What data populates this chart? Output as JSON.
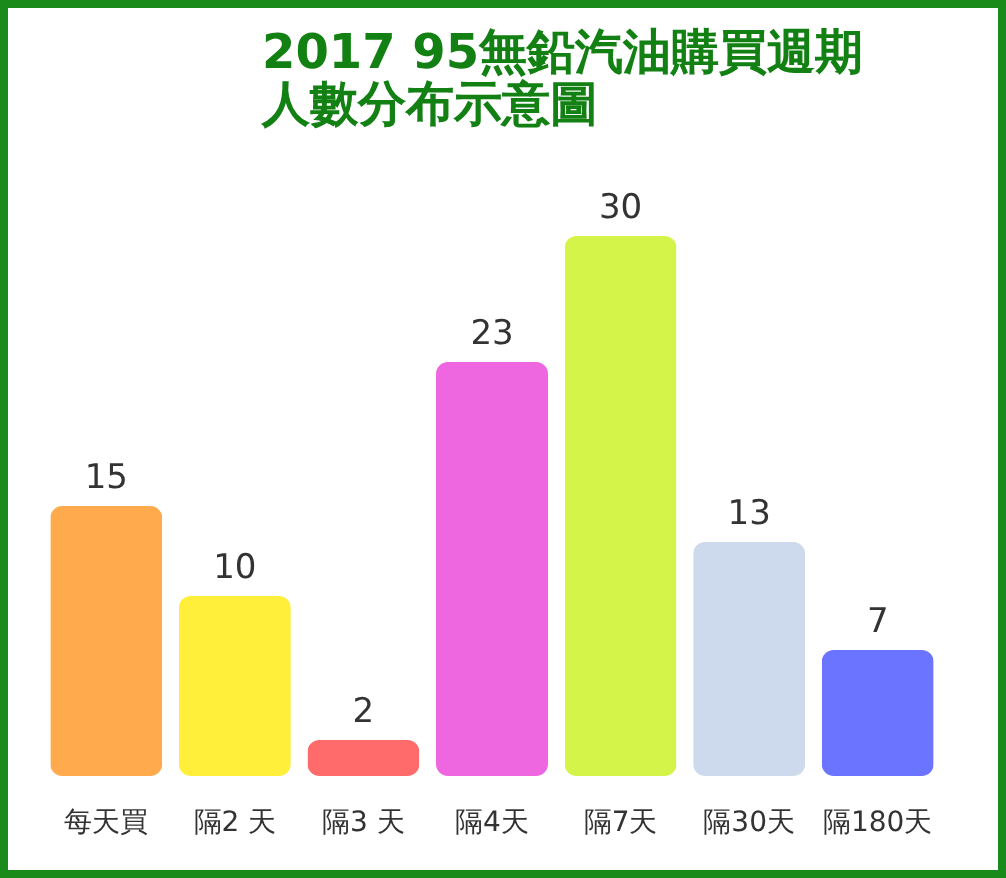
{
  "chart_data": {
    "type": "bar",
    "title": "2017 95無鉛汽油購買週期",
    "subtitle": "人數分布示意圖",
    "categories": [
      "每天買",
      "隔2 天",
      "隔3 天",
      "隔4天",
      "隔7天",
      "隔30天",
      "隔180天"
    ],
    "values": [
      15,
      10,
      2,
      23,
      30,
      13,
      7
    ],
    "colors": [
      "#ffaa4c",
      "#ffee3a",
      "#ff6b6b",
      "#ee66e0",
      "#d4f44a",
      "#cdd9ec",
      "#6b74ff"
    ],
    "data_labels": true
  }
}
